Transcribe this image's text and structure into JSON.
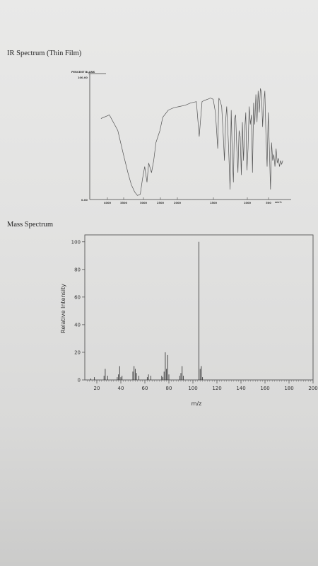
{
  "ir": {
    "title": "IR Spectrum (Thin Film)",
    "chart_data": {
      "type": "line",
      "title": "IR Spectrum (Thin Film)",
      "ylabel": "PERCENT BLANK",
      "ylim_labels": [
        "0.00",
        "100.00"
      ],
      "x_tick_labels": [
        "4000",
        "3500",
        "3000",
        "2500",
        "2000",
        "1500",
        "1000",
        "500"
      ],
      "x_unit_label": "cm-1",
      "xlim": [
        4000,
        500
      ],
      "ylim": [
        0,
        100
      ],
      "series": [
        {
          "x": [
            3800,
            3650,
            3500,
            3400,
            3320,
            3260,
            3200,
            3150,
            3100,
            3060,
            3020,
            2980,
            2950,
            2900,
            2860,
            2820,
            2750,
            2700,
            2600,
            2500,
            2400,
            2300,
            2200,
            2100,
            2050,
            2000,
            1960,
            1900,
            1850,
            1800,
            1760,
            1720,
            1700,
            1680,
            1650,
            1620,
            1600,
            1580,
            1560,
            1530,
            1500,
            1480,
            1460,
            1440,
            1420,
            1400,
            1380,
            1360,
            1340,
            1320,
            1300,
            1280,
            1260,
            1240,
            1220,
            1200,
            1180,
            1160,
            1140,
            1120,
            1100,
            1080,
            1060,
            1040,
            1020,
            1000,
            980,
            960,
            940,
            920,
            900,
            880,
            860,
            840,
            820,
            800,
            780,
            760,
            740,
            720,
            700,
            680,
            660,
            640,
            620,
            600,
            580,
            560
          ],
          "y": [
            65,
            68,
            55,
            35,
            20,
            10,
            4,
            1,
            2,
            15,
            25,
            12,
            28,
            20,
            30,
            45,
            55,
            66,
            72,
            74,
            75,
            76,
            78,
            79,
            50,
            79,
            80,
            81,
            82,
            81,
            70,
            40,
            82,
            80,
            75,
            50,
            30,
            62,
            75,
            45,
            6,
            72,
            35,
            12,
            65,
            68,
            40,
            20,
            55,
            50,
            18,
            62,
            30,
            55,
            70,
            22,
            40,
            75,
            60,
            68,
            20,
            78,
            60,
            85,
            62,
            88,
            70,
            90,
            86,
            58,
            78,
            88,
            50,
            25,
            70,
            40,
            6,
            45,
            30,
            35,
            25,
            40,
            28,
            32,
            25,
            30,
            27,
            30
          ]
        }
      ]
    }
  },
  "ms": {
    "title": "Mass Spectrum",
    "chart_data": {
      "type": "bar",
      "title": "Mass Spectrum",
      "xlabel": "m/z",
      "ylabel": "Relative Intensity",
      "xlim": [
        10,
        200
      ],
      "ylim": [
        0,
        105
      ],
      "x_ticks": [
        20,
        40,
        60,
        80,
        100,
        120,
        140,
        160,
        180,
        200
      ],
      "y_ticks": [
        0,
        20,
        40,
        60,
        80,
        100
      ],
      "peaks": [
        {
          "mz": 15,
          "intensity": 1
        },
        {
          "mz": 18,
          "intensity": 2
        },
        {
          "mz": 26,
          "intensity": 3
        },
        {
          "mz": 27,
          "intensity": 8
        },
        {
          "mz": 29,
          "intensity": 3
        },
        {
          "mz": 37,
          "intensity": 2
        },
        {
          "mz": 38,
          "intensity": 4
        },
        {
          "mz": 39,
          "intensity": 10
        },
        {
          "mz": 40,
          "intensity": 2
        },
        {
          "mz": 41,
          "intensity": 3
        },
        {
          "mz": 50,
          "intensity": 6
        },
        {
          "mz": 51,
          "intensity": 10
        },
        {
          "mz": 52,
          "intensity": 8
        },
        {
          "mz": 53,
          "intensity": 5
        },
        {
          "mz": 55,
          "intensity": 3
        },
        {
          "mz": 62,
          "intensity": 2
        },
        {
          "mz": 63,
          "intensity": 4
        },
        {
          "mz": 65,
          "intensity": 3
        },
        {
          "mz": 74,
          "intensity": 3
        },
        {
          "mz": 75,
          "intensity": 2
        },
        {
          "mz": 76,
          "intensity": 6
        },
        {
          "mz": 77,
          "intensity": 20
        },
        {
          "mz": 78,
          "intensity": 8
        },
        {
          "mz": 79,
          "intensity": 18
        },
        {
          "mz": 80,
          "intensity": 4
        },
        {
          "mz": 89,
          "intensity": 3
        },
        {
          "mz": 90,
          "intensity": 5
        },
        {
          "mz": 91,
          "intensity": 10
        },
        {
          "mz": 92,
          "intensity": 3
        },
        {
          "mz": 105,
          "intensity": 100
        },
        {
          "mz": 106,
          "intensity": 8
        },
        {
          "mz": 107,
          "intensity": 10
        },
        {
          "mz": 108,
          "intensity": 2
        }
      ]
    }
  }
}
